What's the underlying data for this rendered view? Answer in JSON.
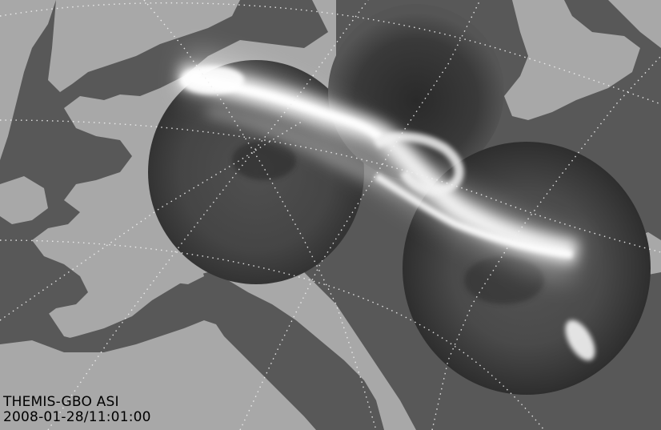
{
  "caption": {
    "instrument": "THEMIS-GBO ASI",
    "timestamp": "2008-01-28/11:01:00"
  },
  "colors": {
    "ocean": "#a8a8a8",
    "land": "#585858",
    "grid": "#f0f0f0",
    "aurora_bright": "#ffffff",
    "imager_dark": "#3c3c3c",
    "text": "#000000"
  },
  "map": {
    "region": "Alaska and western Canada",
    "gridlines": "dotted geomagnetic latitude/longitude grid",
    "imager_fields_of_view": 3,
    "feature": "bright auroral arc crossing from upper-left to lower-right"
  }
}
